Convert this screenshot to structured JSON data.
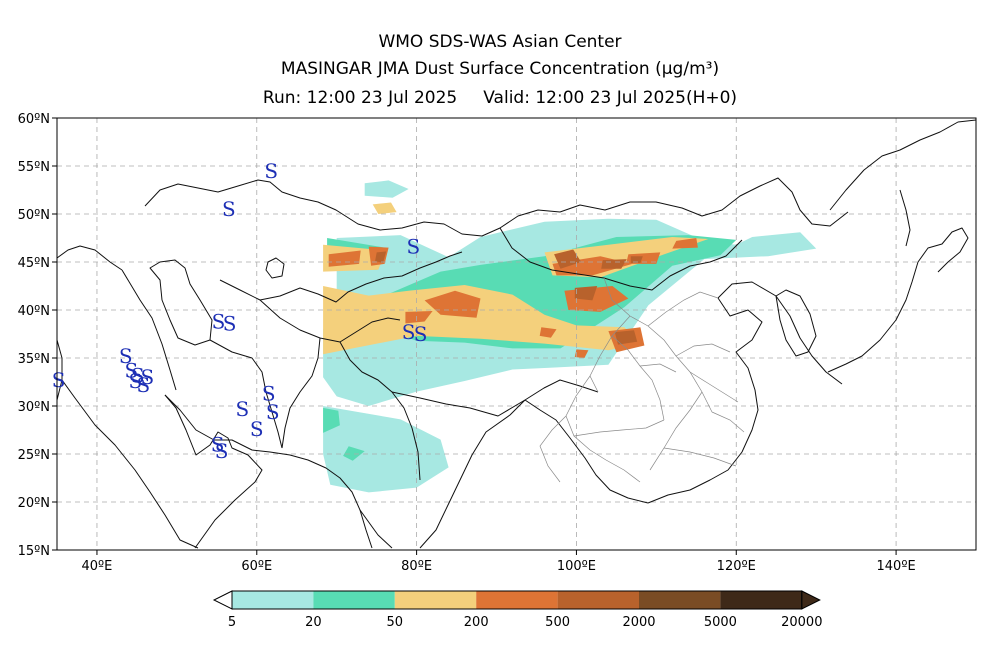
{
  "header": {
    "line1": "WMO SDS-WAS Asian Center",
    "line2": "MASINGAR JMA Dust Surface Concentration (μg/m³)",
    "run": "Run: 12:00 23 Jul 2025",
    "valid": "Valid: 12:00 23 Jul 2025(H+0)"
  },
  "map": {
    "lon_range": [
      35,
      150
    ],
    "lat_range": [
      15,
      60
    ],
    "lon_ticks": [
      {
        "lon": 40,
        "label": "40ºE"
      },
      {
        "lon": 60,
        "label": "60ºE"
      },
      {
        "lon": 80,
        "label": "80ºE"
      },
      {
        "lon": 100,
        "label": "100ºE"
      },
      {
        "lon": 120,
        "label": "120ºE"
      },
      {
        "lon": 140,
        "label": "140ºE"
      }
    ],
    "lat_ticks": [
      {
        "lat": 60,
        "label": "60ºN"
      },
      {
        "lat": 55,
        "label": "55ºN"
      },
      {
        "lat": 50,
        "label": "50ºN"
      },
      {
        "lat": 45,
        "label": "45ºN"
      },
      {
        "lat": 40,
        "label": "40ºN"
      },
      {
        "lat": 35,
        "label": "35ºN"
      },
      {
        "lat": 30,
        "label": "30ºN"
      },
      {
        "lat": 25,
        "label": "25ºN"
      },
      {
        "lat": 20,
        "label": "20ºN"
      },
      {
        "lat": 15,
        "label": "15ºN"
      }
    ],
    "grid": true,
    "dust_storm_symbol": "S",
    "dust_storm_color": "#1d2fb5",
    "dust_storm_reports": [
      {
        "lon": 61.8,
        "lat": 54.5
      },
      {
        "lon": 56.5,
        "lat": 50.5
      },
      {
        "lon": 79.6,
        "lat": 46.6
      },
      {
        "lon": 55.2,
        "lat": 38.8
      },
      {
        "lon": 56.6,
        "lat": 38.6
      },
      {
        "lon": 79.0,
        "lat": 37.7
      },
      {
        "lon": 80.5,
        "lat": 37.5
      },
      {
        "lon": 43.6,
        "lat": 35.2
      },
      {
        "lon": 44.3,
        "lat": 33.7
      },
      {
        "lon": 45.1,
        "lat": 33.2
      },
      {
        "lon": 46.3,
        "lat": 33.0
      },
      {
        "lon": 44.8,
        "lat": 32.6
      },
      {
        "lon": 45.8,
        "lat": 32.2
      },
      {
        "lon": 35.2,
        "lat": 32.7
      },
      {
        "lon": 61.5,
        "lat": 31.3
      },
      {
        "lon": 58.2,
        "lat": 29.7
      },
      {
        "lon": 62.0,
        "lat": 29.4
      },
      {
        "lon": 60.0,
        "lat": 27.6
      },
      {
        "lon": 55.1,
        "lat": 26.0
      },
      {
        "lon": 55.6,
        "lat": 25.3
      }
    ],
    "dust_levels": [
      {
        "level": 1,
        "polygons": [
          [
            [
              70,
              47.5
            ],
            [
              78,
              47.8
            ],
            [
              84,
              45.5
            ],
            [
              88,
              47.6
            ],
            [
              96,
              49.2
            ],
            [
              104,
              49.5
            ],
            [
              110,
              49.4
            ],
            [
              116,
              47.2
            ],
            [
              120,
              46.8
            ],
            [
              122,
              47.6
            ],
            [
              128,
              48.1
            ],
            [
              130,
              46.4
            ],
            [
              124,
              45.6
            ],
            [
              116,
              45.3
            ],
            [
              109,
              40.5
            ],
            [
              104,
              34.3
            ],
            [
              97,
              34.0
            ],
            [
              92,
              33.8
            ],
            [
              86,
              32.6
            ],
            [
              80,
              31.5
            ],
            [
              74,
              30.0
            ],
            [
              70,
              31.0
            ],
            [
              68.3,
              33.0
            ],
            [
              68.3,
              38.0
            ],
            [
              70,
              41.5
            ]
          ],
          [
            [
              68.3,
              30
            ],
            [
              78,
              28.6
            ],
            [
              83,
              26.5
            ],
            [
              84,
              23.6
            ],
            [
              80,
              21.5
            ],
            [
              74,
              21.0
            ],
            [
              69.2,
              21.8
            ],
            [
              68.3,
              25.0
            ]
          ],
          [
            [
              73.5,
              53.2
            ],
            [
              76.5,
              53.5
            ],
            [
              79,
              52.6
            ],
            [
              77,
              51.7
            ],
            [
              73.5,
              51.9
            ]
          ]
        ]
      },
      {
        "level": 2,
        "polygons": [
          [
            [
              88,
              44.7
            ],
            [
              96,
              45.6
            ],
            [
              105,
              47.6
            ],
            [
              114,
              47.8
            ],
            [
              120,
              47.3
            ],
            [
              118,
              45.7
            ],
            [
              112,
              44.6
            ],
            [
              106,
              40.3
            ],
            [
              98,
              36.0
            ],
            [
              92,
              36.0
            ],
            [
              86,
              36.6
            ],
            [
              80,
              36.8
            ],
            [
              74,
              38.5
            ],
            [
              76,
              41.5
            ],
            [
              83,
              44.0
            ]
          ],
          [
            [
              68.8,
              47.5
            ],
            [
              76,
              46.5
            ],
            [
              75,
              44.2
            ],
            [
              70,
              44.2
            ],
            [
              68.8,
              45.5
            ]
          ],
          [
            [
              68.3,
              29.8
            ],
            [
              70.2,
              29.5
            ],
            [
              70.4,
              28.0
            ],
            [
              68.3,
              27.2
            ]
          ],
          [
            [
              71.5,
              25.8
            ],
            [
              73.5,
              25.3
            ],
            [
              72.0,
              24.3
            ],
            [
              70.8,
              24.8
            ]
          ]
        ]
      },
      {
        "level": 3,
        "polygons": [
          [
            [
              68.3,
              42.5
            ],
            [
              74,
              41.5
            ],
            [
              79,
              42.0
            ],
            [
              86,
              42.6
            ],
            [
              92,
              41.6
            ],
            [
              96,
              39.5
            ],
            [
              100,
              38.4
            ],
            [
              106,
              38.2
            ],
            [
              108,
              36.5
            ],
            [
              104,
              35.8
            ],
            [
              96,
              36.5
            ],
            [
              88,
              37.0
            ],
            [
              80,
              37.3
            ],
            [
              72,
              36.0
            ],
            [
              68.3,
              35.4
            ]
          ],
          [
            [
              68.3,
              46.8
            ],
            [
              76.2,
              46.2
            ],
            [
              75.2,
              44.2
            ],
            [
              68.3,
              44.0
            ]
          ],
          [
            [
              96,
              46.0
            ],
            [
              104,
              46.8
            ],
            [
              112,
              47.6
            ],
            [
              116.5,
              47.4
            ],
            [
              111,
              45.8
            ],
            [
              103,
              43.4
            ],
            [
              97,
              43.6
            ]
          ],
          [
            [
              74.5,
              51.0
            ],
            [
              76.8,
              51.2
            ],
            [
              77.5,
              50.2
            ],
            [
              75.2,
              50.0
            ]
          ]
        ]
      },
      {
        "level": 4,
        "polygons": [
          [
            [
              81,
              41.0
            ],
            [
              84.8,
              42.0
            ],
            [
              88,
              41.2
            ],
            [
              87.5,
              39.2
            ],
            [
              83,
              39.5
            ]
          ],
          [
            [
              78.6,
              39.8
            ],
            [
              82,
              39.9
            ],
            [
              81,
              38.8
            ],
            [
              78.6,
              38.6
            ]
          ],
          [
            [
              98.5,
              42.0
            ],
            [
              104.5,
              42.5
            ],
            [
              106.5,
              41.2
            ],
            [
              103,
              39.8
            ],
            [
              99,
              40.0
            ]
          ],
          [
            [
              104,
              37.8
            ],
            [
              108,
              38.2
            ],
            [
              108.5,
              36.3
            ],
            [
              105,
              35.6
            ]
          ],
          [
            [
              69,
              45.8
            ],
            [
              73,
              46.2
            ],
            [
              72.8,
              44.8
            ],
            [
              69,
              44.5
            ]
          ],
          [
            [
              74,
              46.6
            ],
            [
              76.5,
              46.5
            ],
            [
              76,
              44.8
            ],
            [
              74.3,
              44.6
            ]
          ],
          [
            [
              97,
              44.8
            ],
            [
              103,
              45.6
            ],
            [
              107,
              44.8
            ],
            [
              102,
              43.6
            ],
            [
              97.5,
              43.6
            ]
          ],
          [
            [
              106.5,
              45.8
            ],
            [
              110.5,
              46.0
            ],
            [
              110,
              44.8
            ],
            [
              106.2,
              44.8
            ]
          ],
          [
            [
              112.5,
              47.2
            ],
            [
              115,
              47.5
            ],
            [
              115.2,
              46.5
            ],
            [
              112,
              46.4
            ]
          ],
          [
            [
              95.6,
              38.2
            ],
            [
              97.5,
              38.0
            ],
            [
              96.8,
              37.1
            ],
            [
              95.4,
              37.3
            ]
          ],
          [
            [
              100,
              35.9
            ],
            [
              101.5,
              35.8
            ],
            [
              101,
              35.0
            ],
            [
              99.8,
              35.1
            ]
          ]
        ]
      },
      {
        "level": 5,
        "polygons": [
          [
            [
              97.2,
              45.8
            ],
            [
              99.6,
              46.3
            ],
            [
              100.6,
              45.0
            ],
            [
              98,
              44.3
            ]
          ],
          [
            [
              99.8,
              42.3
            ],
            [
              102.6,
              42.5
            ],
            [
              102,
              41.0
            ],
            [
              99.8,
              41.2
            ]
          ],
          [
            [
              104.8,
              37.7
            ],
            [
              107.2,
              37.9
            ],
            [
              107.6,
              36.7
            ],
            [
              105.2,
              36.4
            ]
          ],
          [
            [
              75,
              46.0
            ],
            [
              76.2,
              46.1
            ],
            [
              75.8,
              44.9
            ],
            [
              74.8,
              45.1
            ]
          ],
          [
            [
              103.3,
              45.2
            ],
            [
              106.3,
              45.3
            ],
            [
              105.6,
              44.3
            ],
            [
              103.1,
              44.3
            ]
          ],
          [
            [
              106.8,
              45.6
            ],
            [
              108.3,
              45.6
            ],
            [
              108,
              44.9
            ],
            [
              106.8,
              44.9
            ]
          ]
        ]
      }
    ],
    "colorbar": {
      "colors": [
        "#a7e8e2",
        "#58dcb4",
        "#f4d07c",
        "#de7435",
        "#b8622c",
        "#7a4c24",
        "#3e2918"
      ],
      "under_color": "#ffffff",
      "over_color": "#3e2918",
      "labels": [
        "5",
        "20",
        "50",
        "200",
        "500",
        "2000",
        "5000",
        "20000"
      ]
    }
  }
}
